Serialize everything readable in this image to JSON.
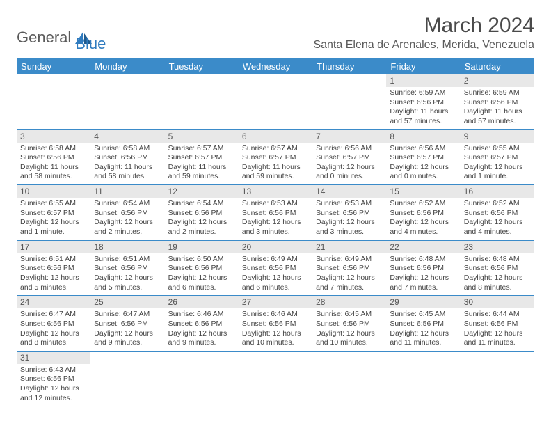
{
  "logo": {
    "text1": "General",
    "text2": "Blue"
  },
  "title": "March 2024",
  "location": "Santa Elena de Arenales, Merida, Venezuela",
  "colors": {
    "header_bg": "#3b8bc9",
    "header_text": "#ffffff",
    "daynum_bg": "#e8e8e8",
    "text": "#444444",
    "border": "#3b8bc9",
    "logo_gray": "#5a5a5a",
    "logo_blue": "#2f7bbf"
  },
  "daysOfWeek": [
    "Sunday",
    "Monday",
    "Tuesday",
    "Wednesday",
    "Thursday",
    "Friday",
    "Saturday"
  ],
  "weeks": [
    [
      null,
      null,
      null,
      null,
      null,
      {
        "n": "1",
        "sr": "6:59 AM",
        "ss": "6:56 PM",
        "dl": "11 hours and 57 minutes."
      },
      {
        "n": "2",
        "sr": "6:59 AM",
        "ss": "6:56 PM",
        "dl": "11 hours and 57 minutes."
      }
    ],
    [
      {
        "n": "3",
        "sr": "6:58 AM",
        "ss": "6:56 PM",
        "dl": "11 hours and 58 minutes."
      },
      {
        "n": "4",
        "sr": "6:58 AM",
        "ss": "6:56 PM",
        "dl": "11 hours and 58 minutes."
      },
      {
        "n": "5",
        "sr": "6:57 AM",
        "ss": "6:57 PM",
        "dl": "11 hours and 59 minutes."
      },
      {
        "n": "6",
        "sr": "6:57 AM",
        "ss": "6:57 PM",
        "dl": "11 hours and 59 minutes."
      },
      {
        "n": "7",
        "sr": "6:56 AM",
        "ss": "6:57 PM",
        "dl": "12 hours and 0 minutes."
      },
      {
        "n": "8",
        "sr": "6:56 AM",
        "ss": "6:57 PM",
        "dl": "12 hours and 0 minutes."
      },
      {
        "n": "9",
        "sr": "6:55 AM",
        "ss": "6:57 PM",
        "dl": "12 hours and 1 minute."
      }
    ],
    [
      {
        "n": "10",
        "sr": "6:55 AM",
        "ss": "6:57 PM",
        "dl": "12 hours and 1 minute."
      },
      {
        "n": "11",
        "sr": "6:54 AM",
        "ss": "6:56 PM",
        "dl": "12 hours and 2 minutes."
      },
      {
        "n": "12",
        "sr": "6:54 AM",
        "ss": "6:56 PM",
        "dl": "12 hours and 2 minutes."
      },
      {
        "n": "13",
        "sr": "6:53 AM",
        "ss": "6:56 PM",
        "dl": "12 hours and 3 minutes."
      },
      {
        "n": "14",
        "sr": "6:53 AM",
        "ss": "6:56 PM",
        "dl": "12 hours and 3 minutes."
      },
      {
        "n": "15",
        "sr": "6:52 AM",
        "ss": "6:56 PM",
        "dl": "12 hours and 4 minutes."
      },
      {
        "n": "16",
        "sr": "6:52 AM",
        "ss": "6:56 PM",
        "dl": "12 hours and 4 minutes."
      }
    ],
    [
      {
        "n": "17",
        "sr": "6:51 AM",
        "ss": "6:56 PM",
        "dl": "12 hours and 5 minutes."
      },
      {
        "n": "18",
        "sr": "6:51 AM",
        "ss": "6:56 PM",
        "dl": "12 hours and 5 minutes."
      },
      {
        "n": "19",
        "sr": "6:50 AM",
        "ss": "6:56 PM",
        "dl": "12 hours and 6 minutes."
      },
      {
        "n": "20",
        "sr": "6:49 AM",
        "ss": "6:56 PM",
        "dl": "12 hours and 6 minutes."
      },
      {
        "n": "21",
        "sr": "6:49 AM",
        "ss": "6:56 PM",
        "dl": "12 hours and 7 minutes."
      },
      {
        "n": "22",
        "sr": "6:48 AM",
        "ss": "6:56 PM",
        "dl": "12 hours and 7 minutes."
      },
      {
        "n": "23",
        "sr": "6:48 AM",
        "ss": "6:56 PM",
        "dl": "12 hours and 8 minutes."
      }
    ],
    [
      {
        "n": "24",
        "sr": "6:47 AM",
        "ss": "6:56 PM",
        "dl": "12 hours and 8 minutes."
      },
      {
        "n": "25",
        "sr": "6:47 AM",
        "ss": "6:56 PM",
        "dl": "12 hours and 9 minutes."
      },
      {
        "n": "26",
        "sr": "6:46 AM",
        "ss": "6:56 PM",
        "dl": "12 hours and 9 minutes."
      },
      {
        "n": "27",
        "sr": "6:46 AM",
        "ss": "6:56 PM",
        "dl": "12 hours and 10 minutes."
      },
      {
        "n": "28",
        "sr": "6:45 AM",
        "ss": "6:56 PM",
        "dl": "12 hours and 10 minutes."
      },
      {
        "n": "29",
        "sr": "6:45 AM",
        "ss": "6:56 PM",
        "dl": "12 hours and 11 minutes."
      },
      {
        "n": "30",
        "sr": "6:44 AM",
        "ss": "6:56 PM",
        "dl": "12 hours and 11 minutes."
      }
    ],
    [
      {
        "n": "31",
        "sr": "6:43 AM",
        "ss": "6:56 PM",
        "dl": "12 hours and 12 minutes."
      },
      null,
      null,
      null,
      null,
      null,
      null
    ]
  ],
  "labels": {
    "sunrise": "Sunrise:",
    "sunset": "Sunset:",
    "daylight": "Daylight:"
  }
}
